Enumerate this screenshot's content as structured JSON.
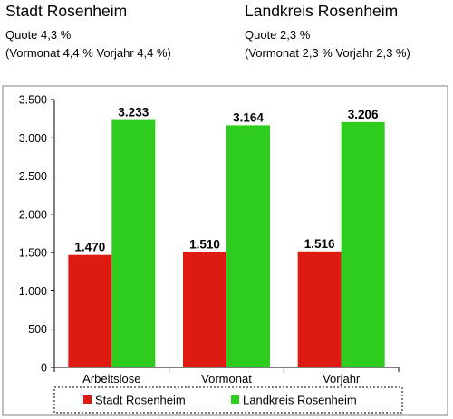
{
  "header": {
    "left": {
      "title": "Stadt Rosenheim",
      "quote": "Quote 4,3 %",
      "previous": "(Vormonat 4,4 % Vorjahr  4,4 %)"
    },
    "right": {
      "title": "Landkreis Rosenheim",
      "quote": "Quote 2,3 %",
      "previous": "(Vormonat 2,3 % Vorjahr 2,3 %)"
    }
  },
  "colors": {
    "stadt": "#dd1b12",
    "landkreis": "#2ecc1f",
    "axis": "#000000",
    "plot_border": "#808080"
  },
  "chart_data": {
    "type": "bar",
    "categories": [
      "Arbeitslose",
      "Vormonat",
      "Vorjahr"
    ],
    "series": [
      {
        "name": "Stadt Rosenheim",
        "values": [
          1470,
          1510,
          1516
        ],
        "labels": [
          "1.470",
          "1.510",
          "1.516"
        ]
      },
      {
        "name": "Landkreis Rosenheim",
        "values": [
          3233,
          3164,
          3206
        ],
        "labels": [
          "3.233",
          "3.164",
          "3.206"
        ]
      }
    ],
    "ylim": [
      0,
      3500
    ],
    "yticks": [
      0,
      500,
      1000,
      1500,
      2000,
      2500,
      3000,
      3500
    ],
    "ytick_labels": [
      "0",
      "500",
      "1.000",
      "1.500",
      "2.000",
      "2.500",
      "3.000",
      "3.500"
    ],
    "grid": false,
    "legend_position": "bottom",
    "title": "",
    "xlabel": "",
    "ylabel": ""
  }
}
